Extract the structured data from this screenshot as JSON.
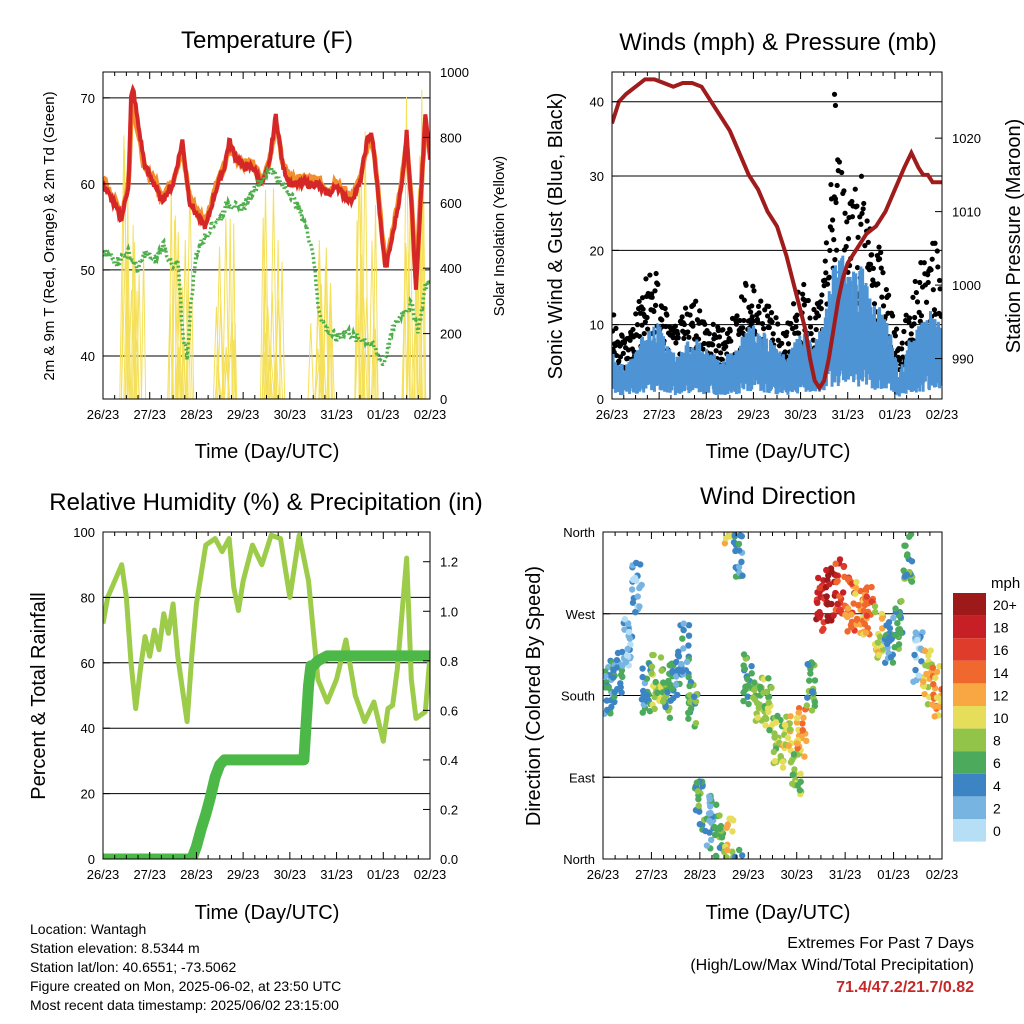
{
  "time_ticks": [
    "26/23",
    "27/23",
    "28/23",
    "29/23",
    "30/23",
    "31/23",
    "01/23",
    "02/23"
  ],
  "info": {
    "location": "Location: Wantagh",
    "elevation": "Station elevation: 8.5344 m",
    "latlon": "Station lat/lon: 40.6551; -73.5062",
    "created": "Figure created on Mon, 2025-06-02, at 23:50 UTC",
    "recent": "Most recent data timestamp: 2025/06/02 23:15:00"
  },
  "extremes": {
    "title": "Extremes For Past 7 Days",
    "subtitle": "(High/Low/Max Wind/Total Precipitation)",
    "values": "71.4/47.2/21.7/0.82",
    "values_color": "#c62828"
  },
  "chart_data": [
    {
      "type": "line",
      "title": "Temperature (F)",
      "xlabel": "Time (Day/UTC)",
      "ylabel": "2m & 9m T (Red, Orange) & 2m Td (Green)",
      "y2label": "Solar Insolation (Yellow)",
      "xlim": [
        0,
        7
      ],
      "ylim": [
        35,
        73
      ],
      "y2lim": [
        0,
        1000
      ],
      "yticks": [
        40,
        50,
        60,
        70
      ],
      "y2ticks": [
        0,
        200,
        400,
        600,
        800,
        1000
      ],
      "grid": true,
      "colors": {
        "t2m": "#d62728",
        "t9m": "#f28e2b",
        "td": "#4daf4a",
        "solar": "#f5e05a"
      },
      "series": [
        {
          "key": "t2m",
          "x": [
            0,
            0.2,
            0.4,
            0.55,
            0.6,
            0.65,
            0.75,
            0.9,
            1.1,
            1.25,
            1.5,
            1.7,
            1.85,
            1.95,
            2.05,
            2.2,
            2.4,
            2.6,
            2.7,
            2.85,
            3.0,
            3.2,
            3.4,
            3.55,
            3.7,
            3.85,
            4.0,
            4.2,
            4.4,
            4.6,
            4.75,
            4.9,
            5.0,
            5.1,
            5.3,
            5.5,
            5.65,
            5.75,
            5.85,
            5.95,
            6.05,
            6.2,
            6.4,
            6.5,
            6.6,
            6.7,
            6.8,
            6.9,
            7.0
          ],
          "y": [
            60,
            58,
            56,
            60,
            70,
            71,
            67,
            62,
            60,
            58,
            60,
            65,
            58,
            57,
            56,
            55,
            59,
            62,
            65,
            63,
            62,
            62,
            60,
            62,
            68,
            62,
            60,
            60,
            60,
            60,
            59,
            59,
            60,
            59,
            58,
            60,
            65,
            66,
            61,
            55,
            50,
            54,
            60,
            66,
            58,
            48,
            58,
            68,
            63
          ]
        },
        {
          "key": "t9m",
          "x": [
            0,
            0.2,
            0.4,
            0.55,
            0.6,
            0.65,
            0.75,
            0.9,
            1.1,
            1.25,
            1.5,
            1.7,
            1.85,
            1.95,
            2.05,
            2.2,
            2.4,
            2.6,
            2.7,
            2.85,
            3.0,
            3.2,
            3.4,
            3.55,
            3.7,
            3.85,
            4.0,
            4.2,
            4.4,
            4.6,
            4.75,
            4.9,
            5.0,
            5.1,
            5.3,
            5.5,
            5.65,
            5.75,
            5.85,
            5.95,
            6.05,
            6.2,
            6.4,
            6.5,
            6.6,
            6.7,
            6.8,
            6.9,
            7.0
          ],
          "y": [
            60.5,
            58.5,
            56.5,
            60,
            68,
            69,
            66,
            61.5,
            60.5,
            58.5,
            60.5,
            64,
            58.5,
            57.5,
            56.5,
            55.5,
            59.5,
            62,
            64,
            63,
            62.5,
            62.5,
            60.5,
            62.5,
            67,
            62.5,
            60.5,
            60.5,
            60.5,
            60.5,
            59.5,
            59.5,
            60.5,
            59.5,
            58.5,
            60.5,
            64,
            65,
            61.5,
            55.5,
            50.5,
            54.5,
            60.5,
            65,
            58.5,
            48.5,
            58.5,
            67,
            63.5
          ]
        },
        {
          "key": "td",
          "x": [
            0,
            0.3,
            0.55,
            0.75,
            0.9,
            1.1,
            1.3,
            1.5,
            1.6,
            1.7,
            1.8,
            1.9,
            2.0,
            2.1,
            2.3,
            2.5,
            2.7,
            2.9,
            3.1,
            3.3,
            3.5,
            3.6,
            3.8,
            4.0,
            4.2,
            4.35,
            4.5,
            4.6,
            4.7,
            4.8,
            5.0,
            5.2,
            5.4,
            5.6,
            5.8,
            6.0,
            6.2,
            6.4,
            6.6,
            6.75,
            6.9,
            7.0
          ],
          "y": [
            52,
            51,
            52,
            50,
            52,
            51,
            53,
            50,
            51,
            43,
            40,
            47,
            52,
            53,
            55,
            56,
            58,
            57,
            58,
            60,
            61,
            62,
            60,
            59,
            57,
            55,
            52,
            46,
            44,
            43,
            42,
            43,
            42,
            42,
            41,
            39,
            43,
            45,
            46,
            43,
            48,
            49
          ]
        },
        {
          "key": "solar",
          "peaks": [
            {
              "x": 0.65,
              "y": 850
            },
            {
              "x": 1.65,
              "y": 700
            },
            {
              "x": 2.65,
              "y": 620
            },
            {
              "x": 3.65,
              "y": 700
            },
            {
              "x": 4.65,
              "y": 500
            },
            {
              "x": 5.65,
              "y": 900
            },
            {
              "x": 6.65,
              "y": 990
            }
          ]
        }
      ]
    },
    {
      "type": "scatter",
      "title": "Winds (mph) & Pressure (mb)",
      "xlabel": "Time (Day/UTC)",
      "ylabel": "Sonic Wind & Gust (Blue, Black)",
      "y2label": "Station Pressure (Maroon)",
      "xlim": [
        0,
        7
      ],
      "ylim": [
        0,
        44
      ],
      "y2lim": [
        984.5,
        1029
      ],
      "yticks": [
        0,
        10,
        20,
        30,
        40
      ],
      "y2ticks": [
        990,
        1000,
        1010,
        1020
      ],
      "grid": true,
      "colors": {
        "gust": "#000000",
        "wind": "#4e94d4",
        "pressure": "#a01c1c"
      },
      "series": [
        {
          "key": "gust_envelope",
          "x": [
            0,
            0.3,
            0.6,
            0.8,
            1.0,
            1.2,
            1.4,
            1.6,
            1.8,
            2.0,
            2.3,
            2.6,
            2.9,
            3.2,
            3.5,
            3.7,
            3.9,
            4.1,
            4.3,
            4.5,
            4.7,
            4.9,
            5.1,
            5.3,
            5.5,
            5.7,
            5.9,
            6.1,
            6.3,
            6.5,
            6.7,
            6.9,
            7.0
          ],
          "y": [
            10,
            7,
            12,
            15,
            14,
            9,
            8,
            11,
            12,
            9,
            8,
            10,
            14,
            12,
            9,
            8,
            12,
            13,
            10,
            14,
            29,
            28,
            25,
            26,
            19,
            17,
            12,
            6,
            11,
            15,
            17,
            18,
            14
          ]
        },
        {
          "key": "wind_envelope",
          "x": [
            0,
            0.3,
            0.6,
            0.8,
            1.0,
            1.2,
            1.4,
            1.6,
            1.8,
            2.0,
            2.3,
            2.6,
            2.9,
            3.2,
            3.5,
            3.7,
            3.9,
            4.1,
            4.3,
            4.5,
            4.7,
            4.9,
            5.1,
            5.3,
            5.5,
            5.7,
            5.9,
            6.1,
            6.3,
            6.5,
            6.7,
            6.9,
            7.0
          ],
          "y": [
            6,
            4,
            7,
            9,
            9,
            6,
            5,
            7,
            7,
            6,
            5,
            6,
            9,
            8,
            6,
            5,
            7,
            8,
            7,
            9,
            16,
            17,
            15,
            16,
            12,
            11,
            8,
            3,
            7,
            9,
            10,
            11,
            9
          ]
        },
        {
          "key": "pressure",
          "x": [
            0,
            0.15,
            0.3,
            0.5,
            0.7,
            0.9,
            1.1,
            1.3,
            1.5,
            1.7,
            1.9,
            2.1,
            2.3,
            2.5,
            2.7,
            2.9,
            3.1,
            3.3,
            3.5,
            3.7,
            3.9,
            4.1,
            4.2,
            4.3,
            4.4,
            4.5,
            4.6,
            4.7,
            4.8,
            4.9,
            5.0,
            5.2,
            5.4,
            5.6,
            5.8,
            6.0,
            6.2,
            6.35,
            6.5,
            6.6,
            6.7,
            6.8,
            6.9,
            7.0
          ],
          "y": [
            1022,
            1025,
            1026,
            1027,
            1028,
            1028,
            1027.5,
            1027,
            1027.5,
            1027.5,
            1027,
            1025,
            1023,
            1021,
            1018,
            1015,
            1013,
            1010,
            1008,
            1004,
            999,
            994,
            990,
            987,
            986,
            987,
            990,
            994,
            998,
            1001,
            1003,
            1005,
            1007,
            1008,
            1010,
            1013,
            1016,
            1018,
            1016,
            1015,
            1015,
            1014,
            1014,
            1014
          ]
        }
      ]
    },
    {
      "type": "line",
      "title": "Relative Humidity (%) & Precipitation (in)",
      "xlabel": "Time (Day/UTC)",
      "ylabel": "Percent & Total Rainfall",
      "xlim": [
        0,
        7
      ],
      "ylim": [
        0,
        100
      ],
      "y2lim": [
        0,
        1.32
      ],
      "yticks": [
        0,
        20,
        40,
        60,
        80,
        100
      ],
      "y2ticks": [
        0.0,
        0.2,
        0.4,
        0.6,
        0.8,
        1.0,
        1.2
      ],
      "grid": true,
      "colors": {
        "rh": "#9ccc4a",
        "precip": "#4cb848"
      },
      "series": [
        {
          "key": "rh",
          "x": [
            0,
            0.1,
            0.25,
            0.4,
            0.5,
            0.6,
            0.7,
            0.8,
            0.9,
            1.0,
            1.1,
            1.2,
            1.3,
            1.4,
            1.5,
            1.6,
            1.7,
            1.8,
            1.9,
            2.0,
            2.2,
            2.4,
            2.55,
            2.7,
            2.8,
            2.9,
            3.0,
            3.2,
            3.4,
            3.6,
            3.8,
            4.0,
            4.2,
            4.4,
            4.6,
            4.8,
            5.0,
            5.2,
            5.4,
            5.6,
            5.8,
            6.0,
            6.1,
            6.2,
            6.3,
            6.4,
            6.5,
            6.6,
            6.7,
            6.8,
            6.9,
            7.0
          ],
          "y": [
            72,
            80,
            85,
            90,
            80,
            60,
            46,
            58,
            68,
            62,
            70,
            64,
            75,
            69,
            78,
            62,
            52,
            42,
            62,
            78,
            96,
            98,
            94,
            98,
            83,
            76,
            85,
            96,
            90,
            99,
            98,
            80,
            99,
            85,
            55,
            48,
            55,
            67,
            50,
            42,
            48,
            36,
            46,
            47,
            58,
            75,
            92,
            55,
            43,
            44,
            45,
            62
          ]
        },
        {
          "key": "precip",
          "x": [
            0,
            1.9,
            2.0,
            2.1,
            2.2,
            2.3,
            2.4,
            2.5,
            2.6,
            2.7,
            4.3,
            4.35,
            4.4,
            4.45,
            4.5,
            4.6,
            4.7,
            4.8,
            7.0
          ],
          "y": [
            0,
            0,
            0.05,
            0.12,
            0.18,
            0.25,
            0.33,
            0.38,
            0.4,
            0.4,
            0.4,
            0.55,
            0.7,
            0.78,
            0.78,
            0.8,
            0.81,
            0.82,
            0.82
          ]
        }
      ]
    },
    {
      "type": "scatter",
      "title": "Wind Direction",
      "xlabel": "Time (Day/UTC)",
      "ylabel": "Direction (Colored By Speed)",
      "xlim": [
        0,
        7
      ],
      "ylim": [
        0,
        360
      ],
      "yticks": [
        "North",
        "East",
        "South",
        "West",
        "North"
      ],
      "legend": {
        "title": "mph",
        "labels": [
          "20+",
          "18",
          "16",
          "14",
          "12",
          "10",
          "8",
          "6",
          "4",
          "2",
          "0"
        ],
        "colors": [
          "#9e1a1a",
          "#c62026",
          "#e03c2c",
          "#f0682e",
          "#f8a742",
          "#e6de5a",
          "#93c44a",
          "#4caa5c",
          "#3d84c4",
          "#78b4e2",
          "#b6def4"
        ]
      },
      "series": [
        {
          "key": "direction",
          "points": [
            {
              "x": 0.1,
              "dir": 190,
              "spd": 4
            },
            {
              "x": 0.3,
              "dir": 200,
              "spd": 4
            },
            {
              "x": 0.5,
              "dir": 240,
              "spd": 2
            },
            {
              "x": 0.7,
              "dir": 300,
              "spd": 2
            },
            {
              "x": 0.9,
              "dir": 190,
              "spd": 4
            },
            {
              "x": 1.1,
              "dir": 195,
              "spd": 8
            },
            {
              "x": 1.3,
              "dir": 185,
              "spd": 6
            },
            {
              "x": 1.5,
              "dir": 200,
              "spd": 4
            },
            {
              "x": 1.7,
              "dir": 230,
              "spd": 4
            },
            {
              "x": 1.85,
              "dir": 175,
              "spd": 6
            },
            {
              "x": 2.0,
              "dir": 60,
              "spd": 6
            },
            {
              "x": 2.2,
              "dir": 40,
              "spd": 4
            },
            {
              "x": 2.4,
              "dir": 30,
              "spd": 6
            },
            {
              "x": 2.6,
              "dir": 15,
              "spd": 10
            },
            {
              "x": 2.8,
              "dir": 340,
              "spd": 4
            },
            {
              "x": 3.0,
              "dir": 200,
              "spd": 6
            },
            {
              "x": 3.2,
              "dir": 180,
              "spd": 8
            },
            {
              "x": 3.4,
              "dir": 170,
              "spd": 8
            },
            {
              "x": 3.6,
              "dir": 130,
              "spd": 8
            },
            {
              "x": 3.8,
              "dir": 130,
              "spd": 10
            },
            {
              "x": 4.0,
              "dir": 100,
              "spd": 8
            },
            {
              "x": 4.1,
              "dir": 140,
              "spd": 12
            },
            {
              "x": 4.3,
              "dir": 190,
              "spd": 6
            },
            {
              "x": 4.5,
              "dir": 280,
              "spd": 18
            },
            {
              "x": 4.7,
              "dir": 290,
              "spd": 20
            },
            {
              "x": 4.9,
              "dir": 300,
              "spd": 16
            },
            {
              "x": 5.1,
              "dir": 280,
              "spd": 14
            },
            {
              "x": 5.3,
              "dir": 275,
              "spd": 12
            },
            {
              "x": 5.5,
              "dir": 270,
              "spd": 14
            },
            {
              "x": 5.7,
              "dir": 250,
              "spd": 10
            },
            {
              "x": 5.9,
              "dir": 240,
              "spd": 4
            },
            {
              "x": 6.1,
              "dir": 260,
              "spd": 6
            },
            {
              "x": 6.3,
              "dir": 330,
              "spd": 6
            },
            {
              "x": 6.5,
              "dir": 220,
              "spd": 2
            },
            {
              "x": 6.7,
              "dir": 200,
              "spd": 10
            },
            {
              "x": 6.9,
              "dir": 185,
              "spd": 12
            }
          ]
        }
      ]
    }
  ]
}
